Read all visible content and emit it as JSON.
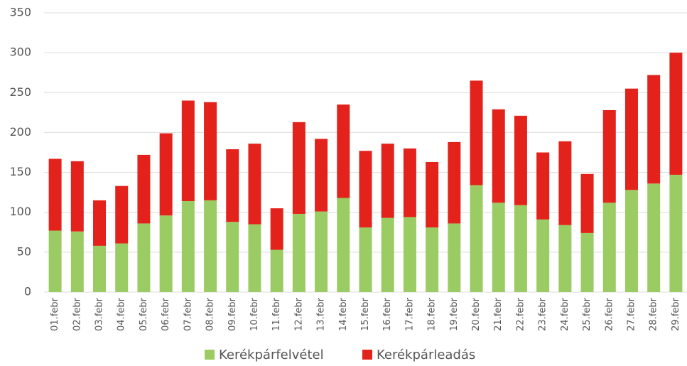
{
  "chart_data": {
    "type": "stacked_bar",
    "categories": [
      "01.febr",
      "02.febr",
      "03.febr",
      "04.febr",
      "05.febr",
      "06.febr",
      "07.febr",
      "08.febr",
      "09.febr",
      "10.febr",
      "11.febr",
      "12.febr",
      "13.febr",
      "14.febr",
      "15.febr",
      "16.febr",
      "17.febr",
      "18.febr",
      "19.febr",
      "20.febr",
      "21.febr",
      "22.febr",
      "23.febr",
      "24.febr",
      "25.febr",
      "26.febr",
      "27.febr",
      "28.febr",
      "29.febr"
    ],
    "series": [
      {
        "name": "Kerékpárfelvétel",
        "color": "#9bcb63",
        "values": [
          77,
          76,
          58,
          61,
          86,
          96,
          114,
          115,
          88,
          85,
          53,
          98,
          101,
          118,
          81,
          93,
          94,
          81,
          86,
          134,
          112,
          109,
          91,
          84,
          74,
          112,
          128,
          136,
          147
        ]
      },
      {
        "name": "Kerékpárleadás",
        "color": "#e3231b",
        "values": [
          90,
          88,
          57,
          72,
          86,
          103,
          126,
          123,
          91,
          101,
          52,
          115,
          91,
          117,
          96,
          93,
          86,
          82,
          102,
          131,
          117,
          112,
          84,
          105,
          74,
          116,
          127,
          136,
          153
        ]
      }
    ],
    "ylim": [
      0,
      350
    ],
    "yticks": [
      0,
      50,
      100,
      150,
      200,
      250,
      300,
      350
    ],
    "grid": true
  }
}
